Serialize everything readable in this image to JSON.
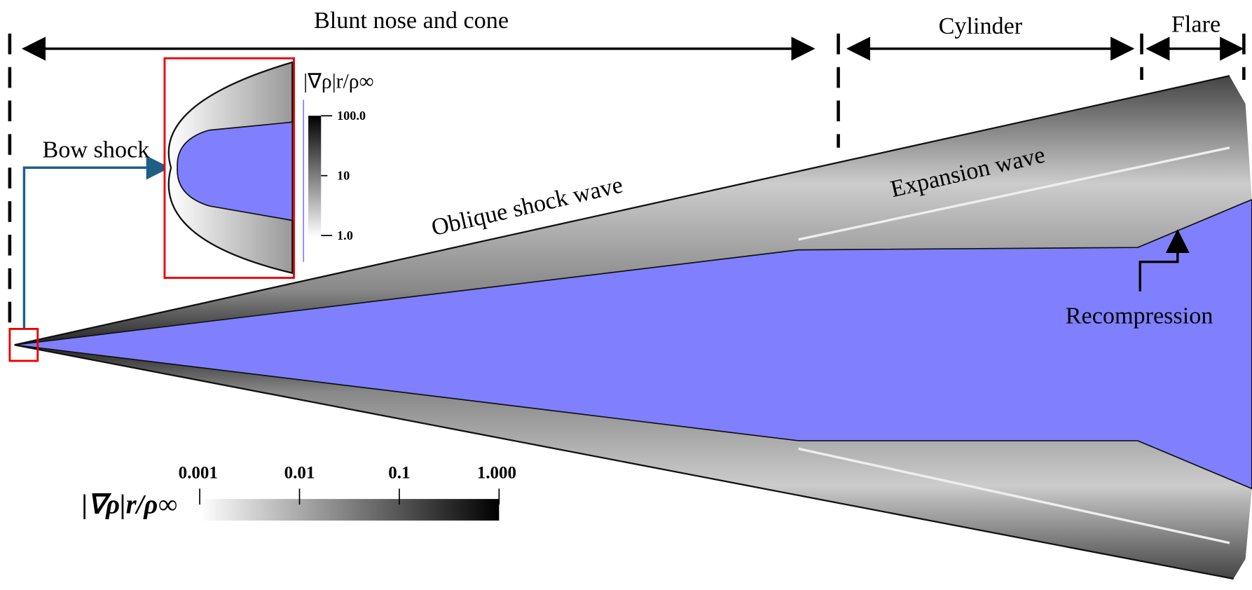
{
  "sections": [
    "Blunt nose and cone",
    "Cylinder",
    "Flare"
  ],
  "annotations": {
    "bow_shock": "Bow shock",
    "oblique_shock": "Oblique shock wave",
    "expansion": "Expansion wave",
    "recompression": "Recompression"
  },
  "inset_colorbar": {
    "label": "|∇ρ|r/ρ∞",
    "ticks": [
      "100.0",
      "10",
      "1.0"
    ]
  },
  "main_colorbar": {
    "label": "|∇ρ|r/ρ∞",
    "ticks": [
      "0.001",
      "0.01",
      "0.1",
      "1.000"
    ]
  }
}
